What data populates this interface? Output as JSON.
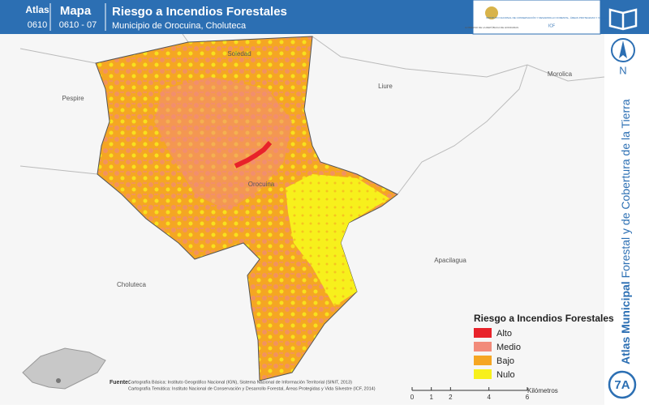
{
  "header": {
    "atlas_label": "Atlas",
    "atlas_code": "0610",
    "mapa_label": "Mapa",
    "mapa_code": "0610 - 07",
    "title": "Riesgo a Incendios Forestales",
    "subtitle": "Municipio de Orocuina, Choluteca"
  },
  "logos": {
    "government": "GOBIERNO DE LA REPÚBLICA DE HONDURAS",
    "institute": "INSTITUTO NACIONAL DE CONSERVACIÓN Y DESARROLLO FORESTAL, ÁREAS PROTEGIDAS Y VIDA SILVESTRE",
    "institute_short": "ICF"
  },
  "places": [
    "Soledad",
    "Pespire",
    "Liure",
    "Morolica",
    "Orocuina",
    "Apacilagua",
    "Choluteca"
  ],
  "legend": {
    "title": "Riesgo a Incendios Forestales",
    "items": [
      {
        "label": "Alto",
        "color": "#e8222a"
      },
      {
        "label": "Medio",
        "color": "#f28b7a"
      },
      {
        "label": "Bajo",
        "color": "#f5a623"
      },
      {
        "label": "Nulo",
        "color": "#f7f01c"
      }
    ]
  },
  "scale": {
    "ticks": [
      0,
      1,
      2,
      4,
      6
    ],
    "unit": "Kilómetros"
  },
  "source": {
    "label": "Fuente:",
    "lines": [
      "Cartografía Básica: Instituto Geográfico Nacional (IGN), Sistema Nacional de Información Territorial (SINIT, 2013)",
      "Cartografía Temática: Instituto Nacional de Conservación y Desarrollo Forestal, Áreas Protegidas y Vida Silvestre (ICF, 2014)"
    ]
  },
  "side": {
    "title_bold": "Atlas Municipal",
    "title_rest": "Forestal y de Cobertura de la Tierra",
    "north": "N",
    "badge": "7A"
  }
}
